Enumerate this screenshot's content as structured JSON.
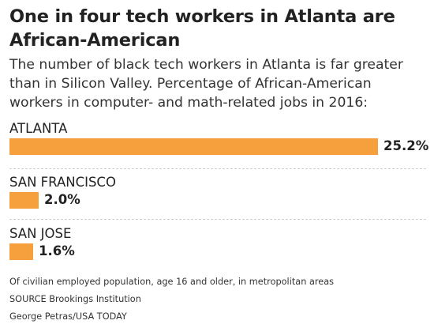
{
  "title": "One in four tech workers in Atlanta are African-American",
  "subtitle": "The number of black tech workers in Atlanta is far greater than in Silicon Valley. Percentage of African-American workers in computer- and math-related jobs in 2016:",
  "chart_data": {
    "type": "bar",
    "orientation": "horizontal",
    "categories": [
      "ATLANTA",
      "SAN FRANCISCO",
      "SAN JOSE"
    ],
    "values": [
      25.2,
      2.0,
      1.6
    ],
    "value_labels": [
      "25.2%",
      "2.0%",
      "1.6%"
    ],
    "title": "One in four tech workers in Atlanta are African-American",
    "xlabel": "",
    "ylabel": "",
    "xlim": [
      0,
      25.2
    ],
    "grid": false,
    "bar_color": "#f5a03c"
  },
  "footnotes": {
    "note": "Of civilian employed population, age 16 and older, in metropolitan areas",
    "source": "SOURCE Brookings Institution",
    "credit": "George Petras/USA TODAY"
  }
}
